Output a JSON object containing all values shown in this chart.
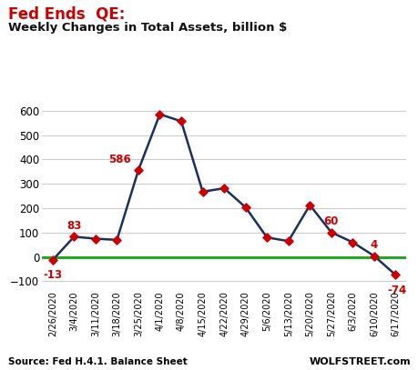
{
  "title_red": "Fed Ends  QE:",
  "title_black": "Weekly Changes in Total Assets, billion $",
  "source_left": "Source: Fed H.4.1. Balance Sheet",
  "source_right": "WOLFSTREET.com",
  "labels": [
    "2/26/2020",
    "3/4/2020",
    "3/11/2020",
    "3/18/2020",
    "3/25/2020",
    "4/1/2020",
    "4/8/2020",
    "4/15/2020",
    "4/22/2020",
    "4/29/2020",
    "5/6/2020",
    "5/13/2020",
    "5/20/2020",
    "5/27/2020",
    "6/3/2020",
    "6/10/2020",
    "6/17/2020"
  ],
  "values": [
    -13,
    83,
    75,
    70,
    356,
    586,
    557,
    268,
    282,
    204,
    80,
    65,
    213,
    101,
    60,
    4,
    -74
  ],
  "line_color": "#1b2f5e",
  "marker_color": "#cc0000",
  "zero_line_color": "#22aa22",
  "title_red_color": "#cc0000",
  "title_black_color": "#111111",
  "annotation_color": "#cc0000",
  "bg_color": "#ffffff",
  "grid_color": "#cccccc",
  "ylim": [
    -130,
    660
  ],
  "yticks": [
    -100,
    0,
    100,
    200,
    300,
    400,
    500,
    600
  ],
  "source_color": "#000000",
  "wolfstreet_color": "#000000"
}
